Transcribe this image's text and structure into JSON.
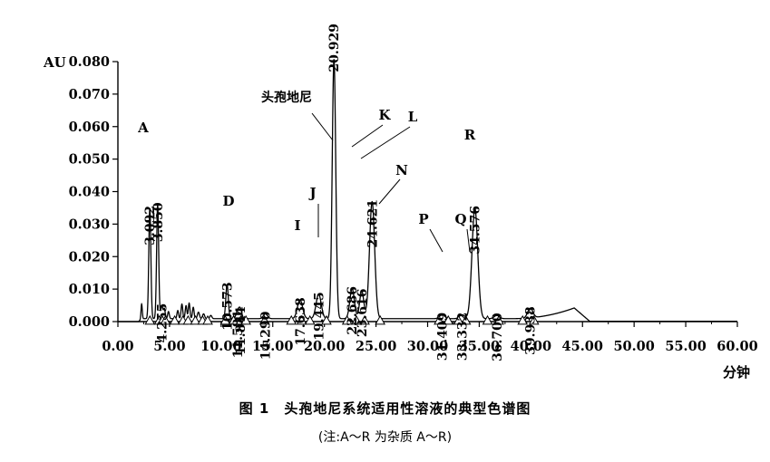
{
  "chart_data": {
    "type": "line",
    "y_unit_label": "AU",
    "x_unit_label": "分钟",
    "xlim": [
      0,
      60
    ],
    "ylim": [
      0,
      0.08
    ],
    "x_ticks": [
      "0.00",
      "5.00",
      "10.00",
      "15.00",
      "20.00",
      "25.00",
      "30.00",
      "35.00",
      "40.00",
      "45.00",
      "50.00",
      "55.00",
      "60.00"
    ],
    "y_ticks": [
      "0.000",
      "0.010",
      "0.020",
      "0.030",
      "0.040",
      "0.050",
      "0.060",
      "0.070",
      "0.080"
    ],
    "grid": false,
    "peaks": [
      {
        "rt": 3.092,
        "label": "3.092",
        "height": 0.034,
        "width": 0.1
      },
      {
        "rt": 3.85,
        "label": "3.850",
        "height": 0.035,
        "width": 0.1
      },
      {
        "rt": 4.255,
        "label": "4.255",
        "height": 0.004,
        "width": 0.1
      },
      {
        "rt": 10.573,
        "label": "10.573",
        "height": 0.0105,
        "width": 0.12
      },
      {
        "rt": 11.581,
        "label": "11.581",
        "height": 0.002,
        "width": 0.15
      },
      {
        "rt": 11.844,
        "label": "11.844",
        "height": 0.003,
        "width": 0.15
      },
      {
        "rt": 14.29,
        "label": "14.290",
        "height": 0.0015,
        "width": 0.2
      },
      {
        "rt": 17.638,
        "label": "17.638",
        "height": 0.0058,
        "width": 0.25
      },
      {
        "rt": 19.445,
        "label": "19.445",
        "height": 0.0075,
        "width": 0.25
      },
      {
        "rt": 20.929,
        "label": "20.929",
        "height": 0.08,
        "width": 0.17
      },
      {
        "rt": 22.686,
        "label": "22.686",
        "height": 0.0092,
        "width": 0.22
      },
      {
        "rt": 23.616,
        "label": "23.616",
        "height": 0.0085,
        "width": 0.2
      },
      {
        "rt": 24.621,
        "label": "24.621",
        "height": 0.036,
        "width": 0.25
      },
      {
        "rt": 31.409,
        "label": "31.409",
        "height": 0.0012,
        "width": 0.25
      },
      {
        "rt": 33.332,
        "label": "33.332",
        "height": 0.0012,
        "width": 0.25
      },
      {
        "rt": 34.576,
        "label": "34.576",
        "height": 0.034,
        "width": 0.28
      },
      {
        "rt": 36.7,
        "label": "36.700",
        "height": 0.001,
        "width": 0.25
      },
      {
        "rt": 39.938,
        "label": "39.938",
        "height": 0.003,
        "width": 0.25
      }
    ],
    "impurity_labels": [
      {
        "text": "A",
        "rt": 3.092
      },
      {
        "text": "D",
        "rt": 10.573
      },
      {
        "text": "I",
        "rt": 17.638
      },
      {
        "text": "J",
        "rt": 19.445
      },
      {
        "text": "头孢地尼",
        "rt": 20.929
      },
      {
        "text": "K",
        "rt": 22.686
      },
      {
        "text": "L",
        "rt": 23.616
      },
      {
        "text": "N",
        "rt": 24.621
      },
      {
        "text": "P",
        "rt": 31.409
      },
      {
        "text": "Q",
        "rt": 33.332
      },
      {
        "text": "R",
        "rt": 34.576
      }
    ]
  },
  "caption": {
    "title": "图 1　头孢地尼系统适用性溶液的典型色谱图",
    "note": "(注:A～R 为杂质 A～R)"
  }
}
